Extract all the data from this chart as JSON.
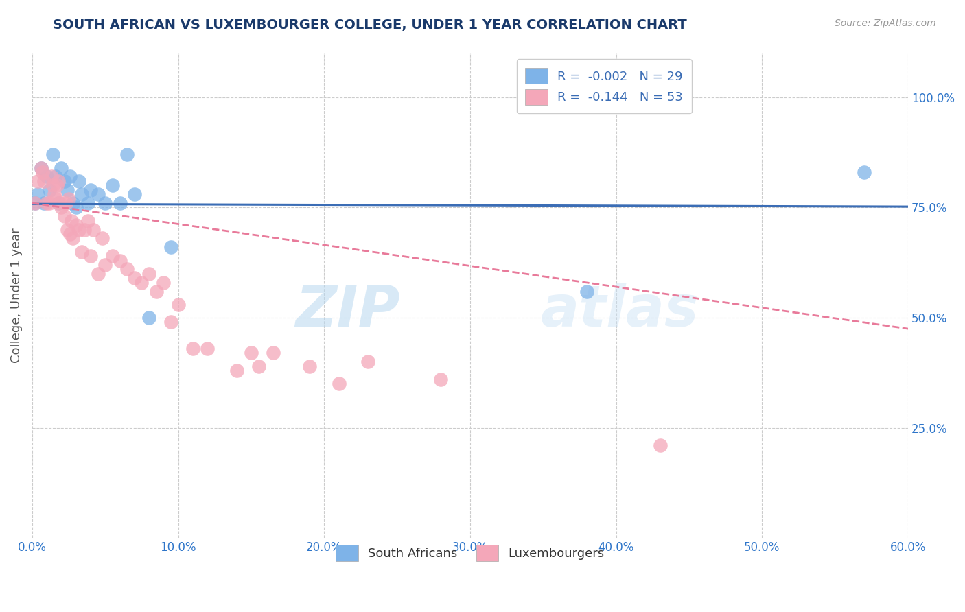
{
  "title": "SOUTH AFRICAN VS LUXEMBOURGER COLLEGE, UNDER 1 YEAR CORRELATION CHART",
  "source": "Source: ZipAtlas.com",
  "ylabel": "College, Under 1 year",
  "xlim": [
    0.0,
    0.6
  ],
  "ylim": [
    0.0,
    1.1
  ],
  "xtick_labels": [
    "0.0%",
    "10.0%",
    "20.0%",
    "30.0%",
    "40.0%",
    "50.0%",
    "60.0%"
  ],
  "xtick_vals": [
    0.0,
    0.1,
    0.2,
    0.3,
    0.4,
    0.5,
    0.6
  ],
  "ytick_labels": [
    "25.0%",
    "50.0%",
    "75.0%",
    "100.0%"
  ],
  "ytick_vals": [
    0.25,
    0.5,
    0.75,
    1.0
  ],
  "blue_color": "#7EB3E8",
  "pink_color": "#F4A7B9",
  "blue_line_color": "#3B6DB5",
  "pink_line_color": "#E87A9A",
  "legend_label1": "South Africans",
  "legend_label2": "Luxembourgers",
  "watermark_zip": "ZIP",
  "watermark_atlas": "atlas",
  "blue_scatter_x": [
    0.002,
    0.004,
    0.006,
    0.008,
    0.01,
    0.012,
    0.014,
    0.016,
    0.018,
    0.02,
    0.022,
    0.024,
    0.026,
    0.028,
    0.03,
    0.032,
    0.034,
    0.038,
    0.04,
    0.045,
    0.05,
    0.055,
    0.06,
    0.065,
    0.07,
    0.08,
    0.095,
    0.38,
    0.57
  ],
  "blue_scatter_y": [
    0.76,
    0.78,
    0.84,
    0.76,
    0.82,
    0.79,
    0.87,
    0.82,
    0.76,
    0.84,
    0.81,
    0.79,
    0.82,
    0.76,
    0.75,
    0.81,
    0.78,
    0.76,
    0.79,
    0.78,
    0.76,
    0.8,
    0.76,
    0.87,
    0.78,
    0.5,
    0.66,
    0.56,
    0.83
  ],
  "pink_scatter_x": [
    0.002,
    0.004,
    0.006,
    0.007,
    0.008,
    0.01,
    0.012,
    0.013,
    0.014,
    0.015,
    0.016,
    0.017,
    0.018,
    0.019,
    0.02,
    0.022,
    0.023,
    0.024,
    0.025,
    0.026,
    0.027,
    0.028,
    0.03,
    0.032,
    0.034,
    0.036,
    0.038,
    0.04,
    0.042,
    0.045,
    0.048,
    0.05,
    0.055,
    0.06,
    0.065,
    0.07,
    0.075,
    0.08,
    0.085,
    0.09,
    0.095,
    0.1,
    0.11,
    0.12,
    0.14,
    0.15,
    0.155,
    0.165,
    0.19,
    0.21,
    0.23,
    0.28,
    0.43
  ],
  "pink_scatter_y": [
    0.76,
    0.81,
    0.84,
    0.83,
    0.81,
    0.76,
    0.76,
    0.82,
    0.8,
    0.78,
    0.77,
    0.8,
    0.81,
    0.76,
    0.75,
    0.73,
    0.76,
    0.7,
    0.77,
    0.69,
    0.72,
    0.68,
    0.71,
    0.7,
    0.65,
    0.7,
    0.72,
    0.64,
    0.7,
    0.6,
    0.68,
    0.62,
    0.64,
    0.63,
    0.61,
    0.59,
    0.58,
    0.6,
    0.56,
    0.58,
    0.49,
    0.53,
    0.43,
    0.43,
    0.38,
    0.42,
    0.39,
    0.42,
    0.39,
    0.35,
    0.4,
    0.36,
    0.21
  ],
  "blue_trend_x": [
    0.0,
    0.6
  ],
  "blue_trend_y": [
    0.758,
    0.752
  ],
  "pink_trend_x": [
    0.0,
    0.6
  ],
  "pink_trend_y": [
    0.76,
    0.475
  ],
  "bg_color": "#FFFFFF",
  "grid_color": "#CCCCCC",
  "title_color": "#1A3A6B",
  "axis_label_color": "#555555",
  "tick_color": "#2E75C9",
  "right_tick_color": "#2E75C9"
}
